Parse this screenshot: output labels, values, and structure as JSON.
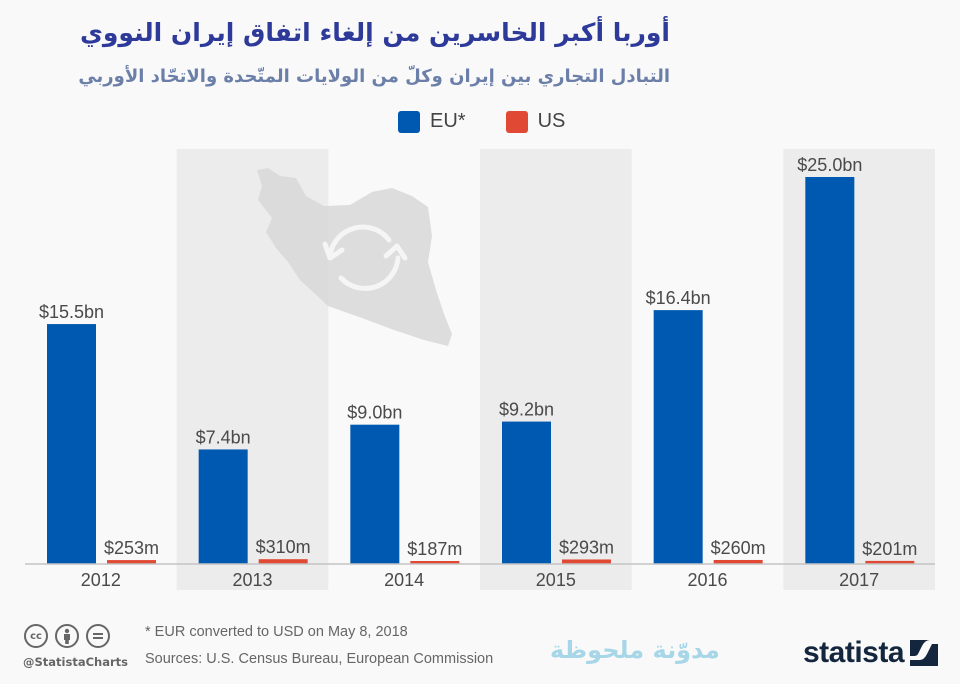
{
  "header": {
    "title": "أوربا أكبر الخاسرين من إلغاء اتفاق إيران النووي",
    "subtitle": "التبادل التجاري بين إيران وكلّ من الولايات المتّحدة والاتحّاد الأوربي"
  },
  "legend": [
    {
      "label": "EU*",
      "color": "#0059b0"
    },
    {
      "label": "US",
      "color": "#e04a35"
    }
  ],
  "chart_data": {
    "type": "bar",
    "title": "أوربا أكبر الخاسرين من إلغاء اتفاق إيران النووي",
    "subtitle": "التبادل التجاري بين إيران وكلّ من الولايات المتّحدة والاتحّاد الأوربي",
    "xlabel": "",
    "ylabel": "",
    "unit": "USD billions",
    "categories": [
      "2012",
      "2013",
      "2014",
      "2015",
      "2016",
      "2017"
    ],
    "series": [
      {
        "name": "EU*",
        "color": "#0059b0",
        "values": [
          15.5,
          7.4,
          9.0,
          9.2,
          16.4,
          25.0
        ],
        "labels": [
          "$15.5bn",
          "$7.4bn",
          "$9.0bn",
          "$9.2bn",
          "$16.4bn",
          "$25.0bn"
        ]
      },
      {
        "name": "US",
        "color": "#e04a35",
        "values": [
          0.253,
          0.31,
          0.187,
          0.293,
          0.26,
          0.201
        ],
        "labels": [
          "$253m",
          "$310m",
          "$187m",
          "$293m",
          "$260m",
          "$201m"
        ]
      }
    ],
    "ylim": [
      0,
      25
    ],
    "grid": false,
    "legend_position": "top-center"
  },
  "footer": {
    "note": "* EUR converted to USD on May 8, 2018",
    "sources": "Sources: U.S. Census Bureau, European Commission",
    "handle": "@StatistaCharts",
    "blog": "مدوّنة ملحوظة",
    "logo": "statista",
    "license_icons": [
      "cc-icon",
      "by-icon",
      "nd-icon"
    ]
  }
}
